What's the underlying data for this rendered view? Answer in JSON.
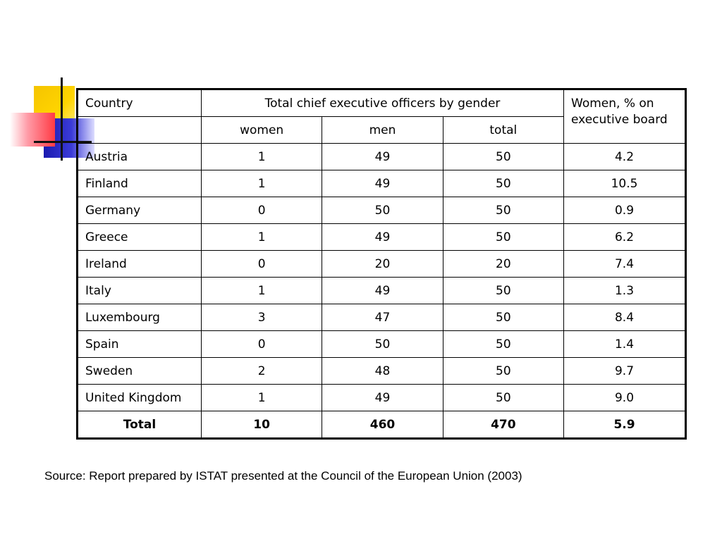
{
  "table": {
    "header": {
      "country": "Country",
      "group": "Total chief executive officers by gender",
      "women_pct": "Women, % on executive board",
      "sub": [
        "women",
        "men",
        "total"
      ]
    },
    "rows": [
      {
        "country": "Austria",
        "women": "1",
        "men": "49",
        "total": "50",
        "pct": "4.2"
      },
      {
        "country": "Finland",
        "women": "1",
        "men": "49",
        "total": "50",
        "pct": "10.5"
      },
      {
        "country": "Germany",
        "women": "0",
        "men": "50",
        "total": "50",
        "pct": "0.9"
      },
      {
        "country": "Greece",
        "women": "1",
        "men": "49",
        "total": "50",
        "pct": "6.2"
      },
      {
        "country": "Ireland",
        "women": "0",
        "men": "20",
        "total": "20",
        "pct": "7.4"
      },
      {
        "country": "Italy",
        "women": "1",
        "men": "49",
        "total": "50",
        "pct": "1.3"
      },
      {
        "country": "Luxembourg",
        "women": "3",
        "men": "47",
        "total": "50",
        "pct": "8.4"
      },
      {
        "country": "Spain",
        "women": "0",
        "men": "50",
        "total": "50",
        "pct": "1.4"
      },
      {
        "country": "Sweden",
        "women": "2",
        "men": "48",
        "total": "50",
        "pct": "9.7"
      },
      {
        "country": "United Kingdom",
        "women": "1",
        "men": "49",
        "total": "50",
        "pct": "9.0"
      }
    ],
    "total_row": {
      "country": "Total",
      "women": "10",
      "men": "460",
      "total": "470",
      "pct": "5.9"
    }
  },
  "source": "Source: Report prepared by ISTAT presented at the Council of the European Union (2003)",
  "colors": {
    "deco_yellow": "#ffd400",
    "deco_blue": "#2a2ac8",
    "deco_red": "#ff3a44"
  }
}
